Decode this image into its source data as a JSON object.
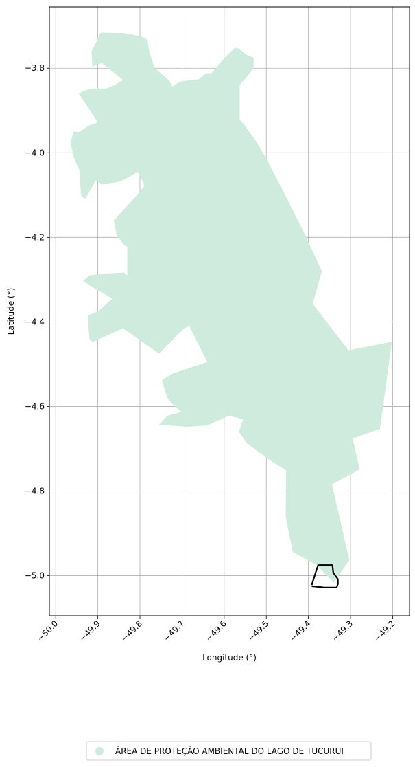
{
  "map": {
    "xlabel": "Longitude (°)",
    "ylabel": "Latitude (°)",
    "xlim": [
      -50.015,
      -49.16
    ],
    "ylim": [
      -5.095,
      -3.655
    ],
    "x_ticks": [
      -50.0,
      -49.9,
      -49.8,
      -49.7,
      -49.6,
      -49.5,
      -49.4,
      -49.3,
      -49.2
    ],
    "x_tick_labels": [
      "−50.0",
      "−49.9",
      "−49.8",
      "−49.7",
      "−49.6",
      "−49.5",
      "−49.4",
      "−49.3",
      "−49.2"
    ],
    "y_ticks": [
      -3.8,
      -4.0,
      -4.2,
      -4.4,
      -4.6,
      -4.8,
      -5.0
    ],
    "y_tick_labels": [
      "−3.8",
      "−4.0",
      "−4.2",
      "−4.4",
      "−4.6",
      "−4.8",
      "−5.0"
    ],
    "grid": true,
    "fill_color": "#cfebdd",
    "outline_color": "#000000",
    "legend": {
      "placement": "bottom-center",
      "label": "ÁREA DE PROTEÇÃO AMBIENTAL DO LAGO DE TUCURUI"
    },
    "protected_area": [
      [
        -49.907,
        -3.745
      ],
      [
        -49.893,
        -3.716
      ],
      [
        -49.838,
        -3.717
      ],
      [
        -49.797,
        -3.725
      ],
      [
        -49.783,
        -3.732
      ],
      [
        -49.777,
        -3.763
      ],
      [
        -49.765,
        -3.8
      ],
      [
        -49.743,
        -3.818
      ],
      [
        -49.73,
        -3.83
      ],
      [
        -49.722,
        -3.844
      ],
      [
        -49.713,
        -3.836
      ],
      [
        -49.7,
        -3.831
      ],
      [
        -49.66,
        -3.826
      ],
      [
        -49.645,
        -3.813
      ],
      [
        -49.629,
        -3.811
      ],
      [
        -49.61,
        -3.788
      ],
      [
        -49.588,
        -3.764
      ],
      [
        -49.573,
        -3.751
      ],
      [
        -49.563,
        -3.755
      ],
      [
        -49.548,
        -3.768
      ],
      [
        -49.53,
        -3.775
      ],
      [
        -49.53,
        -3.8
      ],
      [
        -49.55,
        -3.825
      ],
      [
        -49.563,
        -3.84
      ],
      [
        -49.563,
        -3.92
      ],
      [
        -49.527,
        -3.968
      ],
      [
        -49.502,
        -4.01
      ],
      [
        -49.45,
        -4.11
      ],
      [
        -49.41,
        -4.19
      ],
      [
        -49.368,
        -4.28
      ],
      [
        -49.39,
        -4.357
      ],
      [
        -49.305,
        -4.467
      ],
      [
        -49.202,
        -4.447
      ],
      [
        -49.23,
        -4.653
      ],
      [
        -49.295,
        -4.676
      ],
      [
        -49.278,
        -4.749
      ],
      [
        -49.344,
        -4.784
      ],
      [
        -49.303,
        -4.963
      ],
      [
        -49.34,
        -5.017
      ],
      [
        -49.38,
        -4.975
      ],
      [
        -49.437,
        -4.944
      ],
      [
        -49.454,
        -4.862
      ],
      [
        -49.453,
        -4.751
      ],
      [
        -49.487,
        -4.73
      ],
      [
        -49.545,
        -4.688
      ],
      [
        -49.565,
        -4.66
      ],
      [
        -49.555,
        -4.63
      ],
      [
        -49.59,
        -4.622
      ],
      [
        -49.64,
        -4.645
      ],
      [
        -49.69,
        -4.648
      ],
      [
        -49.755,
        -4.643
      ],
      [
        -49.735,
        -4.622
      ],
      [
        -49.701,
        -4.613
      ],
      [
        -49.72,
        -4.597
      ],
      [
        -49.735,
        -4.58
      ],
      [
        -49.748,
        -4.538
      ],
      [
        -49.722,
        -4.522
      ],
      [
        -49.64,
        -4.495
      ],
      [
        -49.683,
        -4.41
      ],
      [
        -49.695,
        -4.415
      ],
      [
        -49.755,
        -4.475
      ],
      [
        -49.84,
        -4.415
      ],
      [
        -49.913,
        -4.448
      ],
      [
        -49.92,
        -4.44
      ],
      [
        -49.924,
        -4.385
      ],
      [
        -49.9,
        -4.375
      ],
      [
        -49.865,
        -4.345
      ],
      [
        -49.913,
        -4.318
      ],
      [
        -49.935,
        -4.303
      ],
      [
        -49.92,
        -4.29
      ],
      [
        -49.885,
        -4.286
      ],
      [
        -49.838,
        -4.283
      ],
      [
        -49.83,
        -4.29
      ],
      [
        -49.83,
        -4.225
      ],
      [
        -49.84,
        -4.215
      ],
      [
        -49.855,
        -4.195
      ],
      [
        -49.862,
        -4.16
      ],
      [
        -49.83,
        -4.125
      ],
      [
        -49.805,
        -4.098
      ],
      [
        -49.79,
        -4.078
      ],
      [
        -49.795,
        -4.065
      ],
      [
        -49.805,
        -4.045
      ],
      [
        -49.822,
        -4.055
      ],
      [
        -49.846,
        -4.068
      ],
      [
        -49.89,
        -4.075
      ],
      [
        -49.905,
        -4.065
      ],
      [
        -49.93,
        -4.11
      ],
      [
        -49.94,
        -4.1
      ],
      [
        -49.944,
        -4.04
      ],
      [
        -49.947,
        -4.035
      ],
      [
        -49.957,
        -4.011
      ],
      [
        -49.965,
        -3.978
      ],
      [
        -49.958,
        -3.95
      ],
      [
        -49.945,
        -3.951
      ],
      [
        -49.92,
        -3.935
      ],
      [
        -49.9,
        -3.928
      ],
      [
        -49.945,
        -3.86
      ],
      [
        -49.93,
        -3.852
      ],
      [
        -49.91,
        -3.848
      ],
      [
        -49.88,
        -3.848
      ],
      [
        -49.86,
        -3.84
      ],
      [
        -49.84,
        -3.828
      ],
      [
        -49.85,
        -3.82
      ],
      [
        -49.89,
        -3.788
      ],
      [
        -49.913,
        -3.796
      ],
      [
        -49.915,
        -3.76
      ]
    ],
    "outlined_area": [
      [
        -49.392,
        -5.022
      ],
      [
        -49.383,
        -4.993
      ],
      [
        -49.377,
        -4.975
      ],
      [
        -49.343,
        -4.975
      ],
      [
        -49.341,
        -4.993
      ],
      [
        -49.336,
        -5.0
      ],
      [
        -49.33,
        -5.008
      ],
      [
        -49.33,
        -5.02
      ],
      [
        -49.333,
        -5.028
      ],
      [
        -49.362,
        -5.028
      ],
      [
        -49.392,
        -5.025
      ]
    ]
  }
}
